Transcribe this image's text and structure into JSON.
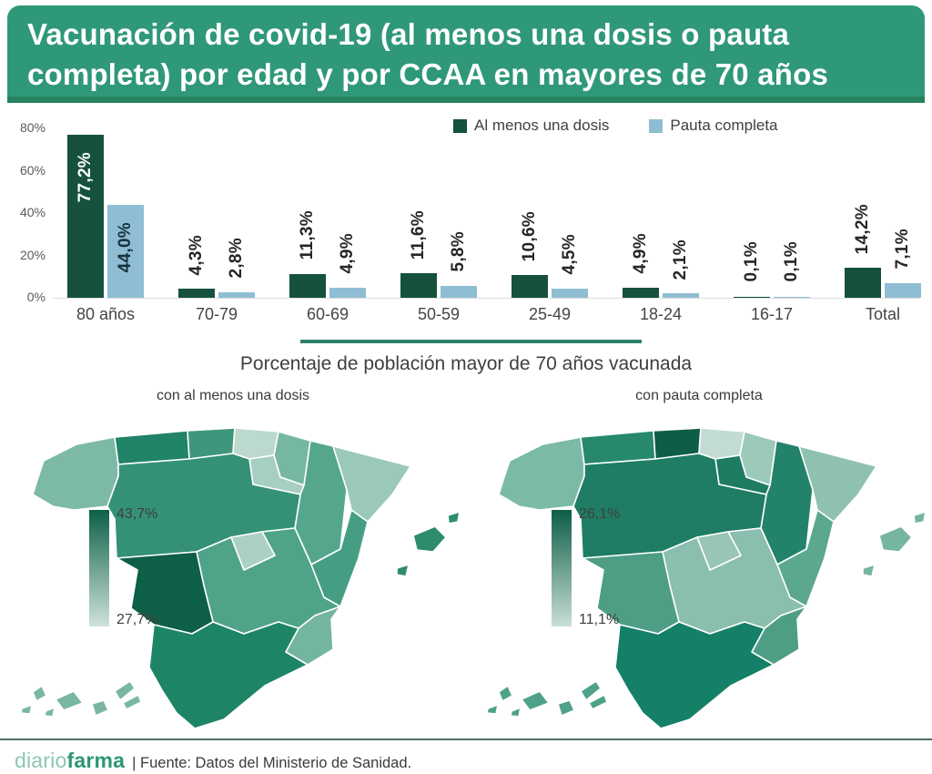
{
  "header": {
    "title": "Vacunación de covid-19 (al menos una dosis o pauta completa) por edad y por CCAA en mayores de 70 años",
    "bg_color": "#2F9878",
    "strip_color": "#27825F"
  },
  "chart_data": {
    "type": "bar",
    "categories": [
      "80 años",
      "70-79",
      "60-69",
      "50-59",
      "25-49",
      "18-24",
      "16-17",
      "Total"
    ],
    "series": [
      {
        "name": "Al menos una dosis",
        "color": "#15513E",
        "values": [
          77.2,
          4.3,
          11.3,
          11.6,
          10.6,
          4.9,
          0.1,
          14.2
        ],
        "labels": [
          "77,2%",
          "4,3%",
          "11,3%",
          "11,6%",
          "10,6%",
          "4,9%",
          "0,1%",
          "14,2%"
        ]
      },
      {
        "name": "Pauta completa",
        "color": "#8FBDD3",
        "values": [
          44.0,
          2.8,
          4.9,
          5.8,
          4.5,
          2.1,
          0.1,
          7.1
        ],
        "labels": [
          "44,0%",
          "2,8%",
          "4,9%",
          "5,8%",
          "4,5%",
          "2,1%",
          "0,1%",
          "7,1%"
        ]
      }
    ],
    "ylim": [
      0,
      80
    ],
    "yticks": [
      "0%",
      "20%",
      "40%",
      "60%",
      "80%"
    ],
    "grid": false,
    "legend_position": "top-right"
  },
  "subtitle": "Porcentaje de población mayor de 70 años vacunada",
  "maps": {
    "left": {
      "title": "con al menos una dosis",
      "legend": {
        "max": "43,7%",
        "min": "27,7%",
        "top_color": "#0D5F48",
        "bottom_color": "#CFE3DB"
      },
      "region_colors": {
        "galicia": "#7CBAA6",
        "asturias": "#218367",
        "cantabria": "#3E977C",
        "pais_vasco": "#BCD9CD",
        "navarra": "#76B7A0",
        "la_rioja": "#A7CFC1",
        "aragon": "#54A78C",
        "cataluna": "#9BC9B8",
        "castilla_y_leon": "#349176",
        "madrid": "#ABD1C4",
        "castilla_la_mancha": "#4FA388",
        "extremadura": "#0E5F47",
        "valencia": "#459E84",
        "murcia": "#73B59F",
        "andalucia": "#1E8466",
        "baleares": "#2E8C6E",
        "canarias": "#79B7A3"
      }
    },
    "right": {
      "title": "con pauta completa",
      "legend": {
        "max": "26,1%",
        "min": "11,1%",
        "top_color": "#0D5D47",
        "bottom_color": "#C9DFD6"
      },
      "region_colors": {
        "galicia": "#7CBAA8",
        "asturias": "#27886C",
        "cantabria": "#0E5D47",
        "pais_vasco": "#C3DCD2",
        "navarra": "#9BC9BA",
        "la_rioja": "#1E7C63",
        "aragon": "#23826A",
        "cataluna": "#8FC1B1",
        "castilla_y_leon": "#1E7D64",
        "madrid": "#98C5B5",
        "castilla_la_mancha": "#8ABEAE",
        "extremadura": "#4D9E85",
        "valencia": "#5BA88F",
        "murcia": "#4D9E85",
        "andalucia": "#148068",
        "baleares": "#76B5A2",
        "canarias": "#4FA189"
      }
    }
  },
  "footer": {
    "logo_light": "diario",
    "logo_bold": "farma",
    "separator": "|",
    "source": "Fuente: Datos del Ministerio de Sanidad."
  }
}
